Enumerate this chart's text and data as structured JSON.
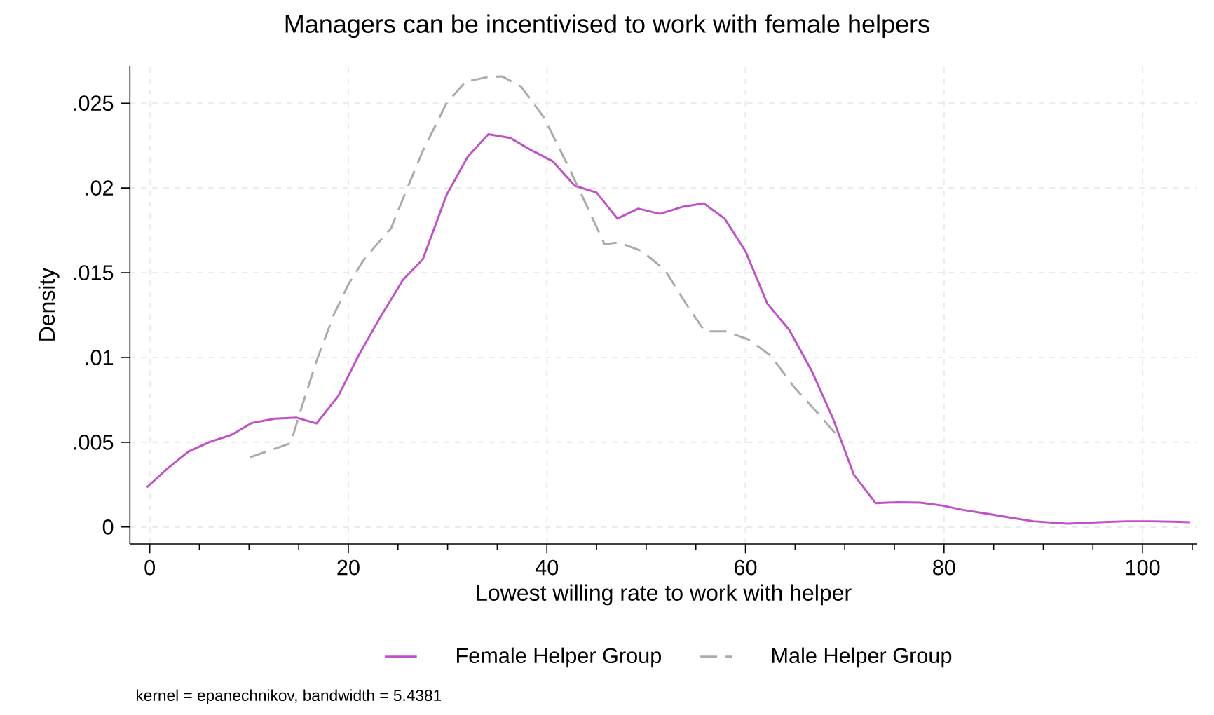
{
  "chart_data": {
    "type": "line",
    "title": "Managers can be incentivised to work with female helpers",
    "xlabel": "Lowest willing rate to work with helper",
    "ylabel": "Density",
    "annotations": [
      "kernel = epanechnikov, bandwidth = 5.4381"
    ],
    "xlim": [
      -2,
      105.5
    ],
    "ylim": [
      -0.001,
      0.0272
    ],
    "xticks": [
      0,
      {
        "value": 5,
        "label": null
      },
      {
        "value": 10,
        "label": null
      },
      {
        "value": 15,
        "label": null
      },
      20,
      {
        "value": 25,
        "label": null
      },
      {
        "value": 30,
        "label": null
      },
      {
        "value": 35,
        "label": null
      },
      40,
      {
        "value": 45,
        "label": null
      },
      {
        "value": 50,
        "label": null
      },
      {
        "value": 55,
        "label": null
      },
      60,
      {
        "value": 65,
        "label": null
      },
      {
        "value": 70,
        "label": null
      },
      {
        "value": 75,
        "label": null
      },
      80,
      {
        "value": 85,
        "label": null
      },
      {
        "value": 90,
        "label": null
      },
      {
        "value": 95,
        "label": null
      },
      100,
      {
        "value": 105,
        "label": null
      }
    ],
    "yticks": [
      0,
      {
        "value": 0.005,
        "label": ".005"
      },
      {
        "value": 0.01,
        "label": ".01"
      },
      {
        "value": 0.015,
        "label": ".015"
      },
      {
        "value": 0.02,
        "label": ".02"
      },
      {
        "value": 0.025,
        "label": ".025"
      }
    ],
    "grid": true,
    "legend": "bottom",
    "series": [
      {
        "name": "Female Helper Group",
        "color": "#c04fc9",
        "line_style": "solid",
        "x": [
          -0.3,
          1.8,
          3.9,
          6.0,
          8.2,
          10.3,
          12.6,
          14.8,
          16.8,
          19.0,
          21.0,
          23.2,
          25.5,
          27.5,
          29.9,
          32.0,
          34.1,
          36.3,
          38.3,
          40.6,
          42.8,
          45.0,
          47.1,
          49.2,
          51.4,
          53.7,
          55.8,
          57.9,
          60.0,
          62.2,
          64.4,
          66.7,
          68.8,
          70.9,
          73.1,
          75.3,
          77.6,
          79.8,
          81.9,
          84.3,
          86.6,
          89.0,
          92.4,
          95.6,
          98.4,
          100.8,
          103.1,
          104.8
        ],
        "values": [
          0.00234,
          0.00346,
          0.00445,
          0.00501,
          0.00543,
          0.00614,
          0.00639,
          0.00645,
          0.00611,
          0.00774,
          0.01008,
          0.01236,
          0.01458,
          0.01579,
          0.01959,
          0.02182,
          0.02317,
          0.02295,
          0.02227,
          0.02157,
          0.02013,
          0.01973,
          0.01819,
          0.01878,
          0.01847,
          0.01889,
          0.01909,
          0.01819,
          0.01627,
          0.01318,
          0.01163,
          0.00918,
          0.00642,
          0.0031,
          0.00141,
          0.00146,
          0.00144,
          0.00127,
          0.00101,
          0.00079,
          0.00056,
          0.00034,
          0.0002,
          0.00028,
          0.00034,
          0.00034,
          0.00031,
          0.00028
        ]
      },
      {
        "name": "Male Helper Group",
        "color": "#aaaaaa",
        "line_style": "dashed",
        "x": [
          10.1,
          14.2,
          15.1,
          16.8,
          18.6,
          20.0,
          21.5,
          22.9,
          24.3,
          25.7,
          27.5,
          29.9,
          31.8,
          34.1,
          35.5,
          37.4,
          39.7,
          42.1,
          43.9,
          45.8,
          47.2,
          49.6,
          51.9,
          54.0,
          55.9,
          58.0,
          60.3,
          62.6,
          64.9,
          67.3,
          69.6
        ],
        "values": [
          0.00411,
          0.00495,
          0.0067,
          0.0098,
          0.01261,
          0.0143,
          0.01571,
          0.01669,
          0.01762,
          0.01965,
          0.02218,
          0.025,
          0.02627,
          0.02655,
          0.02658,
          0.02598,
          0.02416,
          0.02134,
          0.01909,
          0.01669,
          0.01678,
          0.01627,
          0.01515,
          0.01318,
          0.01154,
          0.01154,
          0.01106,
          0.01008,
          0.00825,
          0.0067,
          0.00515
        ]
      }
    ]
  }
}
